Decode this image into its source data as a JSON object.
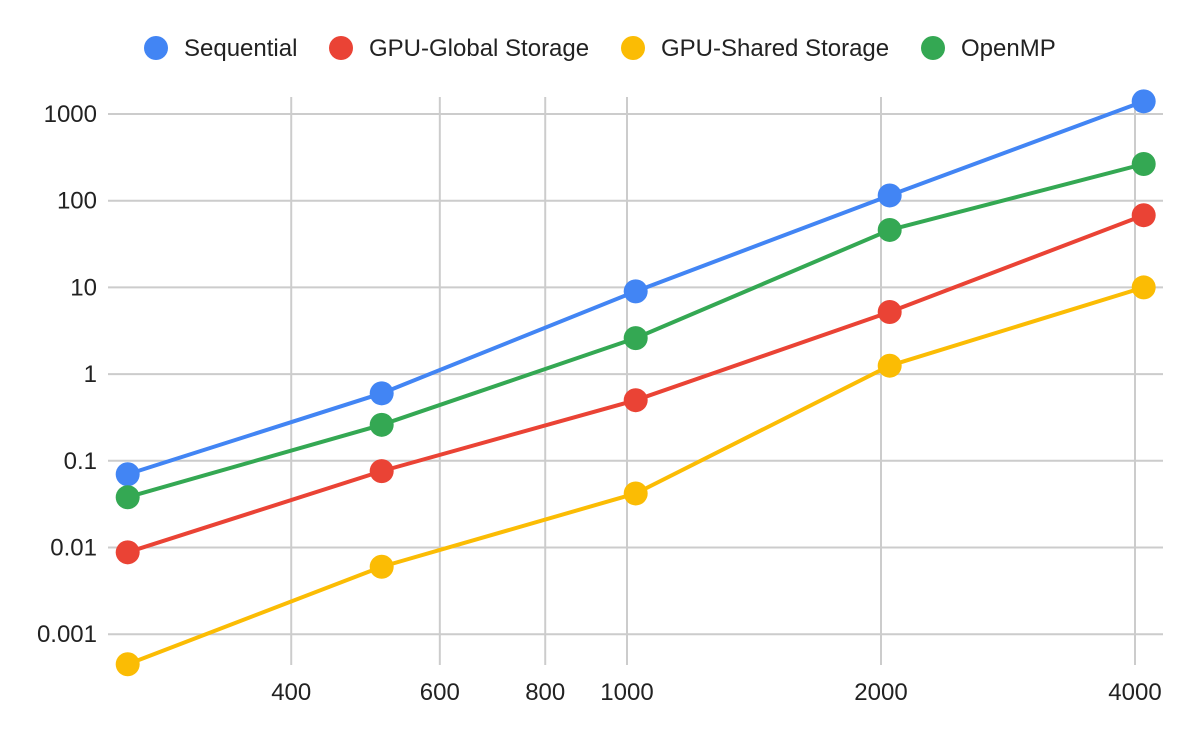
{
  "chart_data": {
    "type": "line",
    "title": "",
    "xlabel": "",
    "ylabel": "",
    "x_scale": "log",
    "y_scale": "log",
    "grid": true,
    "legend": "top",
    "x": [
      256,
      512,
      1024,
      2048,
      4096
    ],
    "x_ticks": [
      "400",
      "600",
      "800",
      "1000",
      "2000",
      "4000"
    ],
    "y_ticks": [
      "1000",
      "100",
      "10",
      "1",
      "0.1",
      "0.01",
      "0.001"
    ],
    "series": [
      {
        "name": "Sequential",
        "color": "#4285f4",
        "values": [
          0.07,
          0.6,
          9,
          115,
          1400
        ]
      },
      {
        "name": "GPU-Global Storage",
        "color": "#ea4335",
        "values": [
          0.0088,
          0.076,
          0.5,
          5.2,
          68
        ]
      },
      {
        "name": "GPU-Shared Storage",
        "color": "#fbbc04",
        "values": [
          0.00045,
          0.006,
          0.042,
          1.25,
          10
        ]
      },
      {
        "name": "OpenMP",
        "color": "#34a853",
        "values": [
          0.038,
          0.26,
          2.6,
          46,
          265
        ]
      }
    ]
  }
}
